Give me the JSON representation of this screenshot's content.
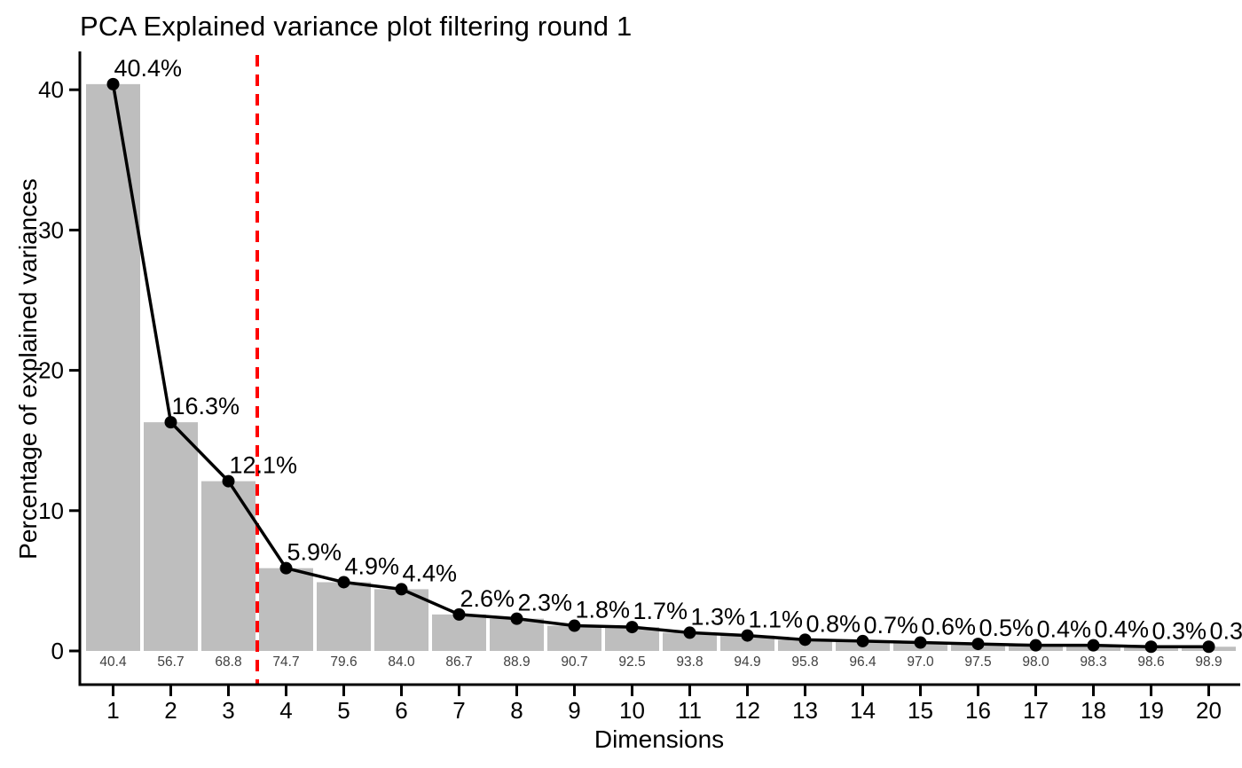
{
  "chart_data": {
    "type": "bar",
    "subtype": "scree-plot-with-line-overlay",
    "title": "PCA Explained variance plot filtering round 1",
    "xlabel": "Dimensions",
    "ylabel": "Percentage of explained variances",
    "categories": [
      1,
      2,
      3,
      4,
      5,
      6,
      7,
      8,
      9,
      10,
      11,
      12,
      13,
      14,
      15,
      16,
      17,
      18,
      19,
      20
    ],
    "values": [
      40.4,
      16.3,
      12.1,
      5.9,
      4.9,
      4.4,
      2.6,
      2.3,
      1.8,
      1.7,
      1.3,
      1.1,
      0.8,
      0.7,
      0.6,
      0.5,
      0.4,
      0.4,
      0.3,
      0.3
    ],
    "point_labels": [
      "40.4%",
      "16.3%",
      "12.1%",
      "5.9%",
      "4.9%",
      "4.4%",
      "2.6%",
      "2.3%",
      "1.8%",
      "1.7%",
      "1.3%",
      "1.1%",
      "0.8%",
      "0.7%",
      "0.6%",
      "0.5%",
      "0.4%",
      "0.4%",
      "0.3%",
      "0.3"
    ],
    "cumulative_labels": [
      "40.4",
      "56.7",
      "68.8",
      "74.7",
      "79.6",
      "84.0",
      "86.7",
      "88.9",
      "90.7",
      "92.5",
      "93.8",
      "94.9",
      "95.8",
      "96.4",
      "97.0",
      "97.5",
      "98.0",
      "98.3",
      "98.6",
      "98.9"
    ],
    "yticks": [
      0,
      10,
      20,
      30,
      40
    ],
    "ylim": [
      0,
      42.6
    ],
    "grid": false,
    "legend_position": "none",
    "cutoff_line": {
      "x": 3.5,
      "style": "dashed",
      "color": "#ff0000"
    },
    "colors": {
      "bar_fill": "#bebebe",
      "line": "#000000",
      "point": "#000000",
      "axis": "#000000",
      "tick_label": "#000000",
      "cumulative_label": "#404040",
      "background": "#ffffff"
    }
  }
}
